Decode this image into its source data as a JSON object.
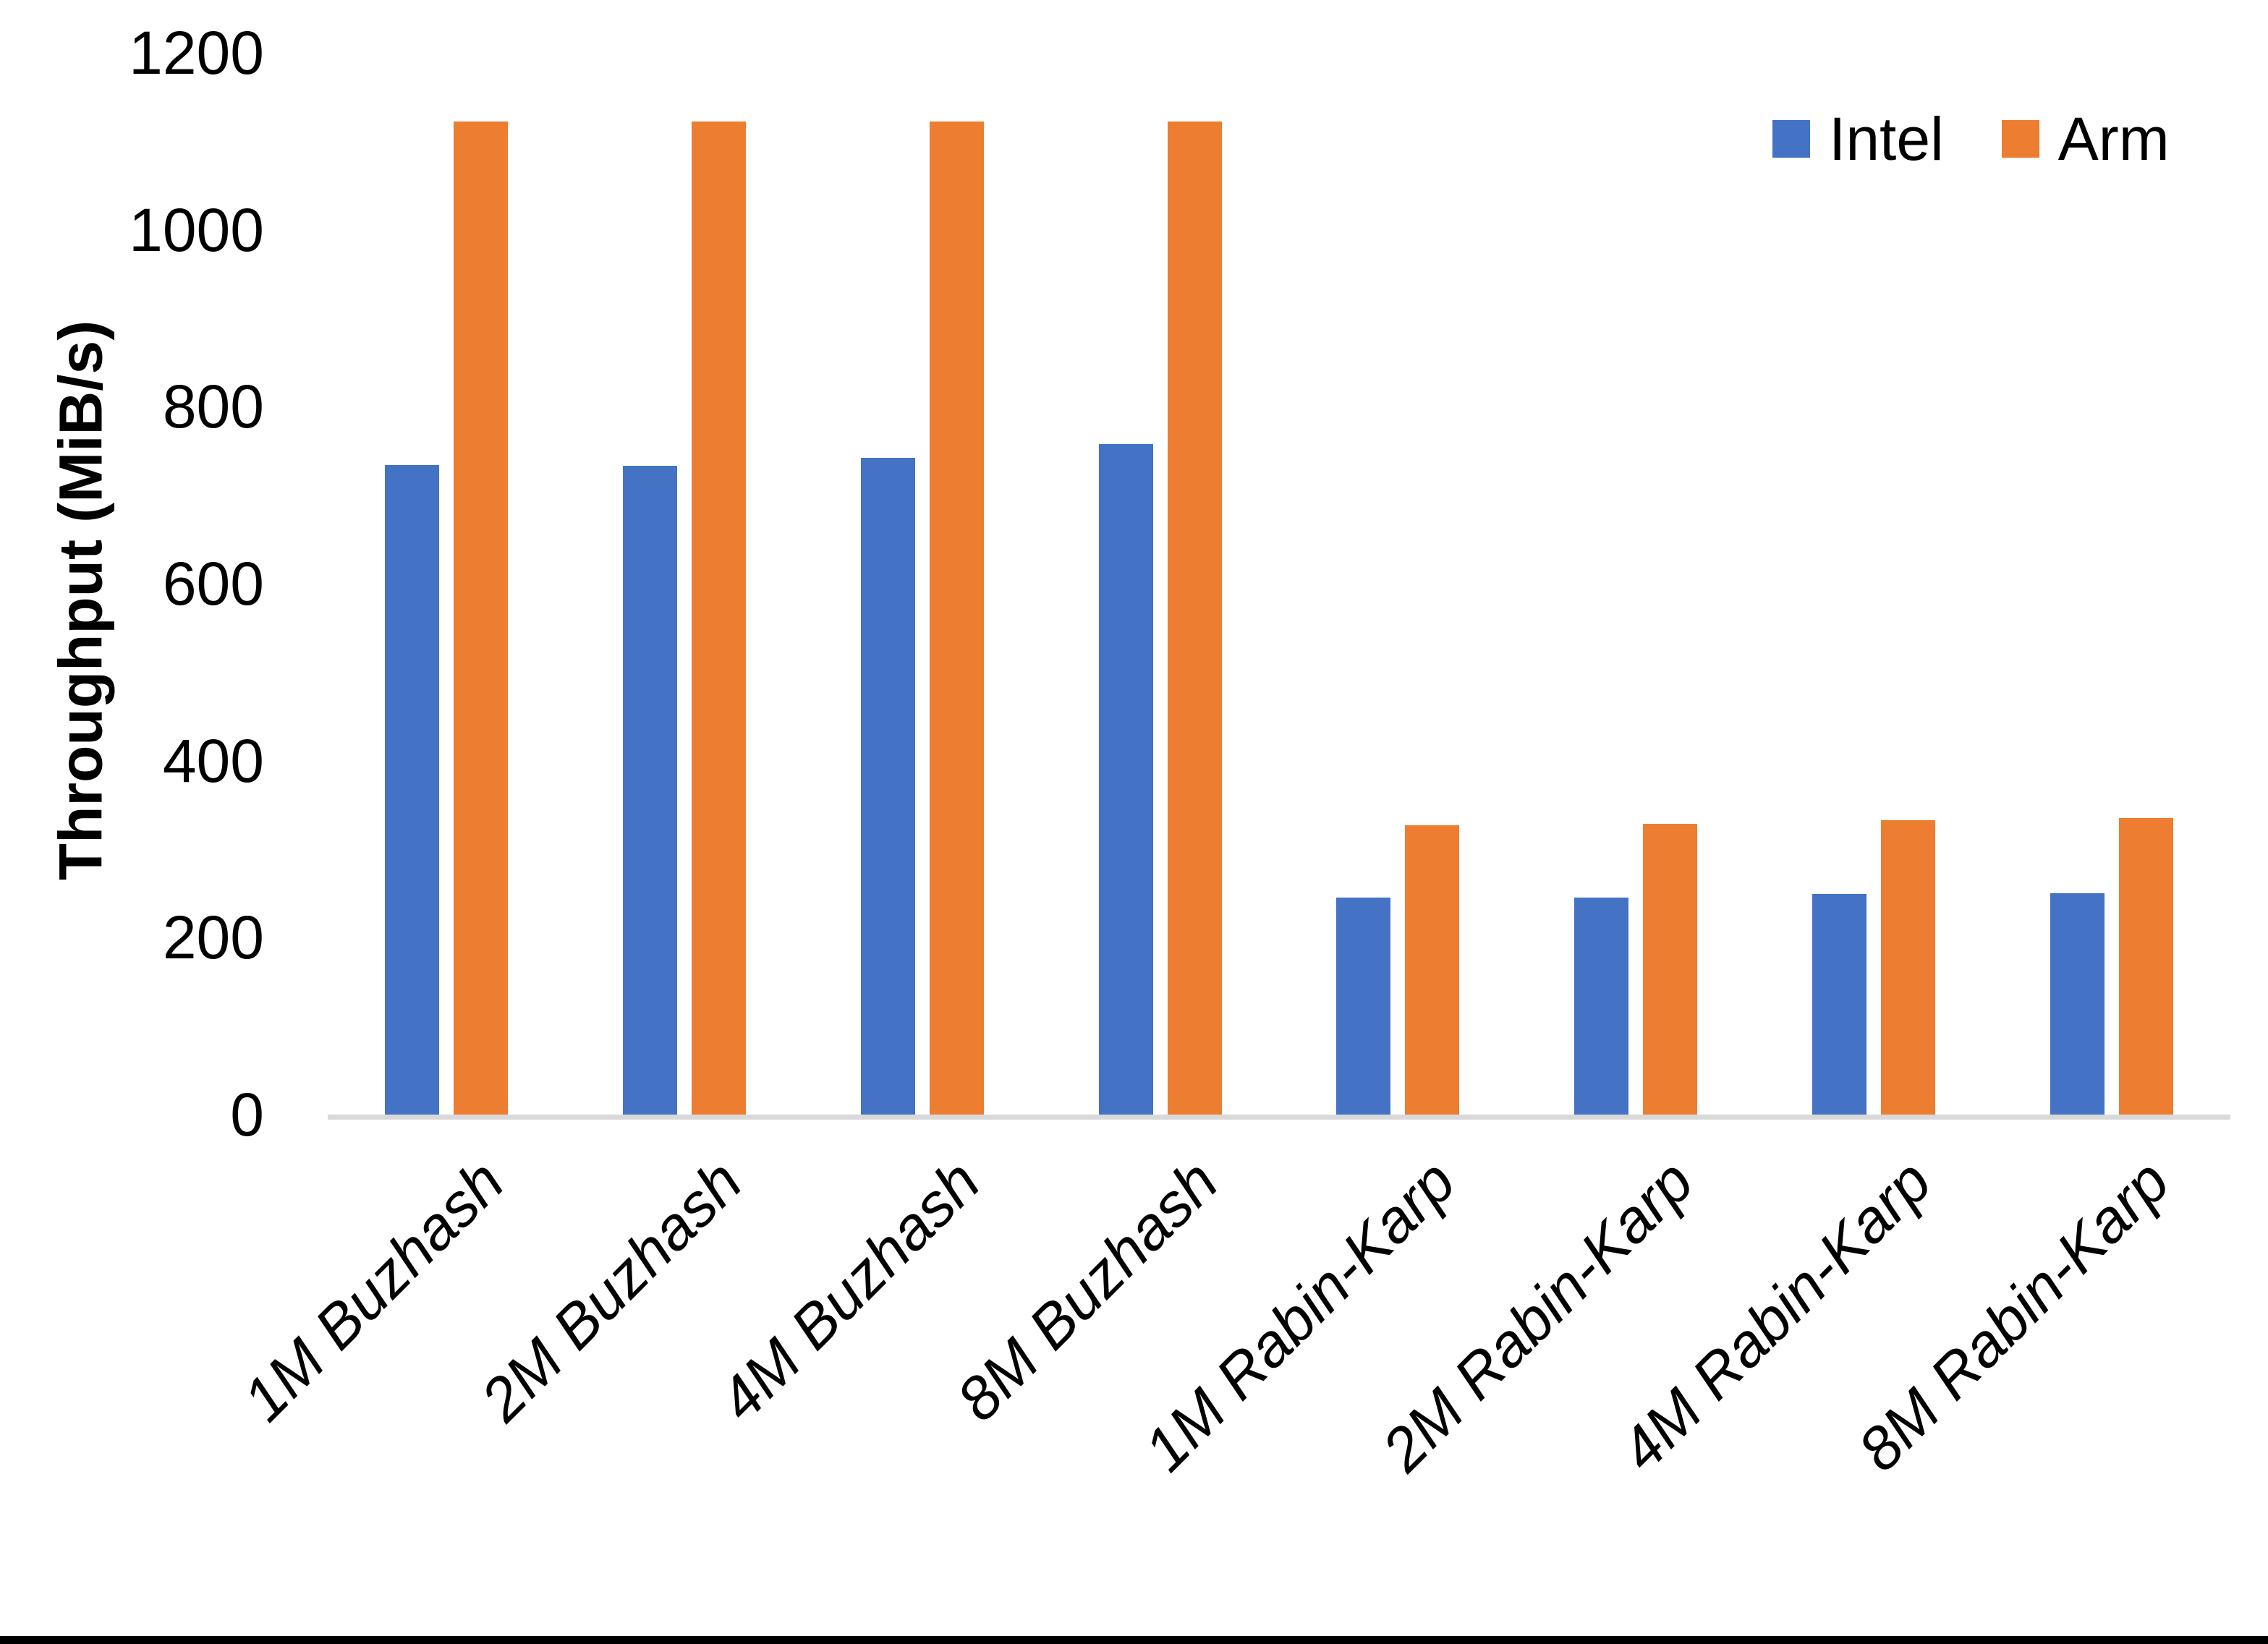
{
  "chart_data": {
    "type": "bar",
    "title": "",
    "xlabel": "",
    "ylabel": "Throughput (MiB/s)",
    "categories": [
      "1M Buzhash",
      "2M Buzhash",
      "4M Buzhash",
      "8M Buzhash",
      "1M Rabin-Karp",
      "2M Rabin-Karp",
      "4M Rabin-Karp",
      "8M Rabin-Karp"
    ],
    "series": [
      {
        "name": "Intel",
        "color": "#4472C4",
        "values": [
          734,
          733,
          742,
          758,
          245,
          245,
          249,
          250
        ]
      },
      {
        "name": "Arm",
        "color": "#ED7D31",
        "values": [
          1122,
          1122,
          1122,
          1122,
          327,
          329,
          333,
          335
        ]
      }
    ],
    "y_axis": {
      "min": 0,
      "max": 1200,
      "tick_interval": 200,
      "ticks": [
        0,
        200,
        400,
        600,
        800,
        1000,
        1200
      ]
    },
    "grid": false,
    "legend_position": "top-right",
    "axis_line_color": "#D9D9D9",
    "background_color": "#FFFFFF",
    "bottom_edge_color": "#000000"
  }
}
